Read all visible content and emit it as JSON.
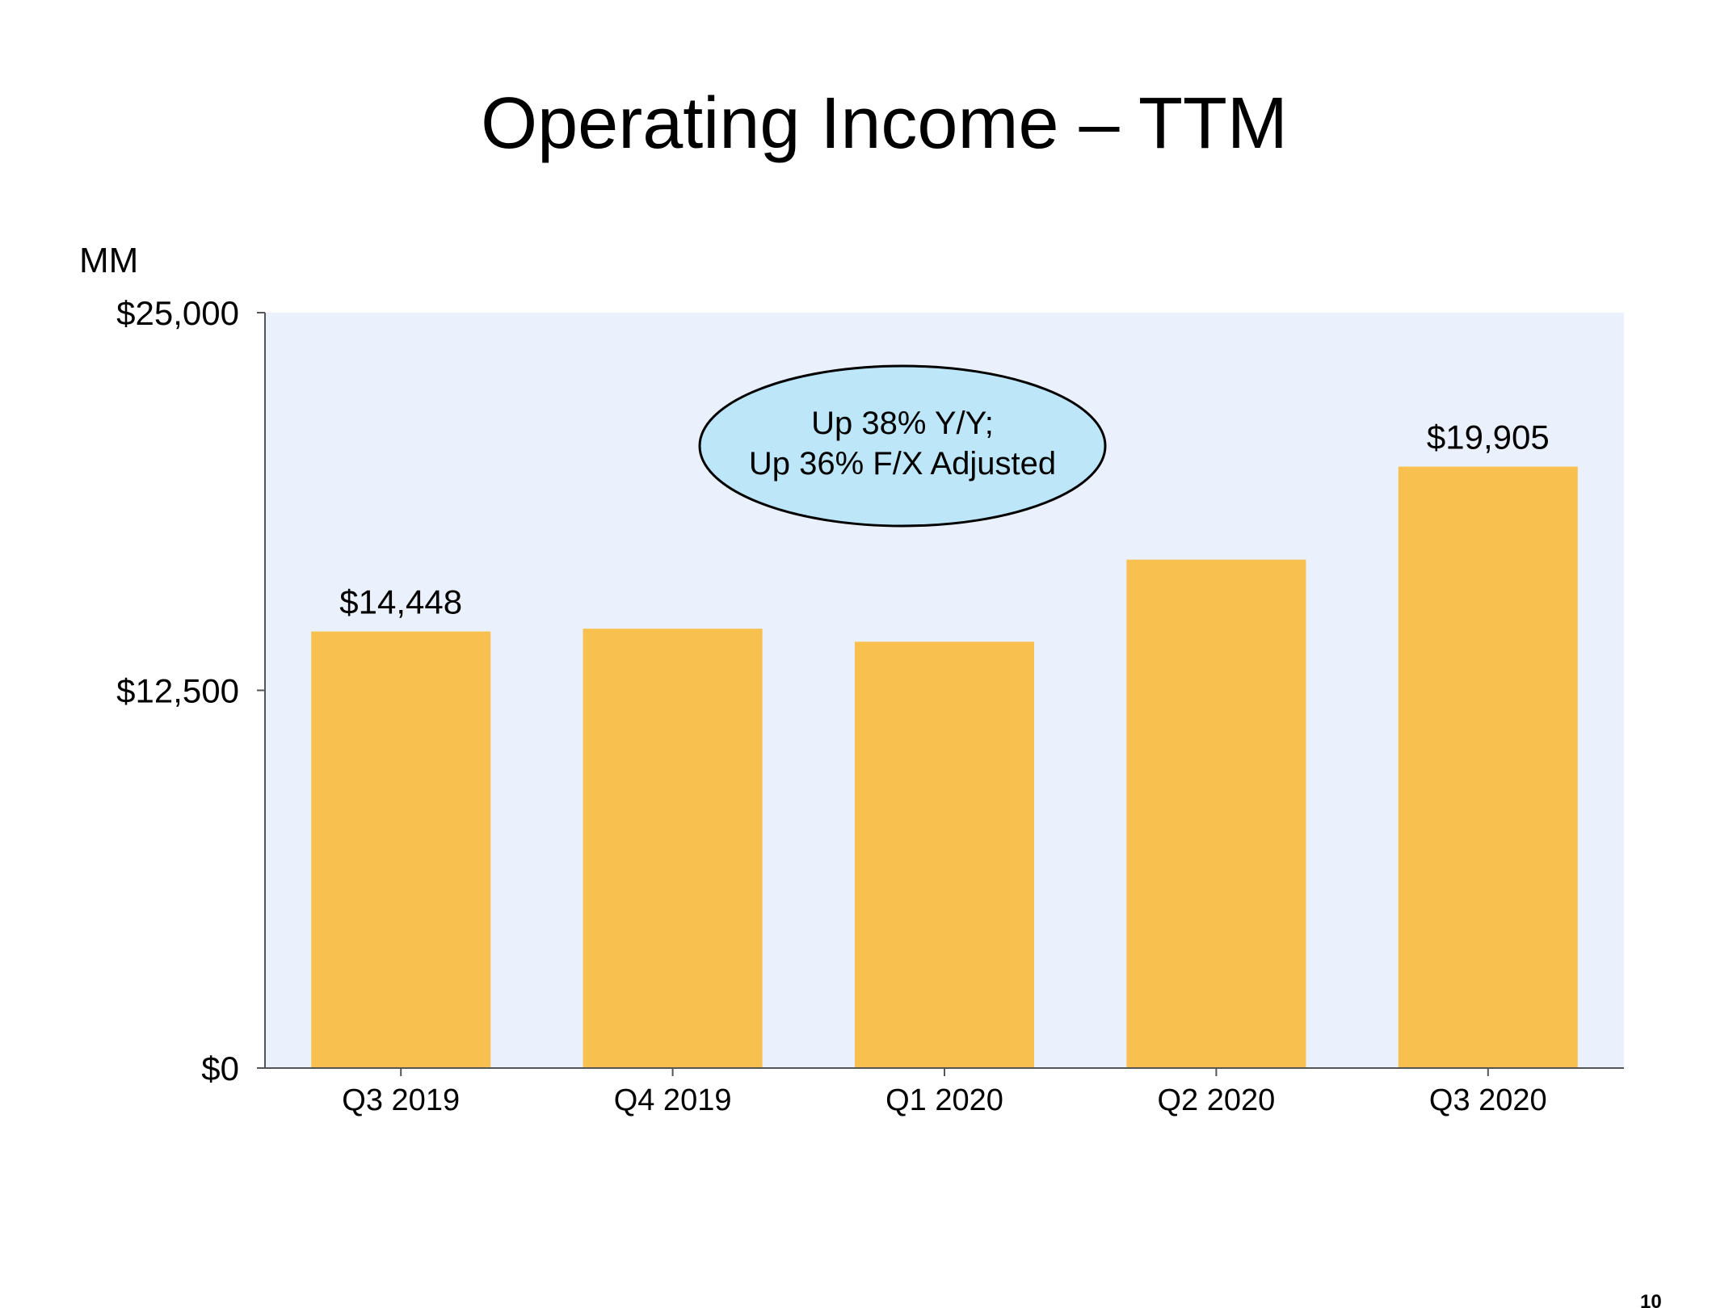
{
  "slide": {
    "title": "Operating Income – TTM",
    "unit_label": "MM",
    "page_number": "10"
  },
  "callout": {
    "line1": "Up 38% Y/Y;",
    "line2": "Up 36% F/X Adjusted"
  },
  "colors": {
    "bar": "#F8C04F",
    "plot_background": "#EAF1FC",
    "callout_fill": "#BDE6F9",
    "axis": "#555555"
  },
  "chart_data": {
    "type": "bar",
    "title": "Operating Income – TTM",
    "ylabel": "MM",
    "xlabel": "",
    "categories": [
      "Q3 2019",
      "Q4 2019",
      "Q1 2020",
      "Q2 2020",
      "Q3 2020"
    ],
    "values": [
      14448,
      14541,
      14109,
      16826,
      19905
    ],
    "data_labels": [
      "$14,448",
      "",
      "",
      "",
      "$19,905"
    ],
    "ylim": [
      0,
      25000
    ],
    "yticks": [
      0,
      12500,
      25000
    ],
    "ytick_labels": [
      "$0",
      "$12,500",
      "$25,000"
    ],
    "grid": false,
    "legend": "none"
  }
}
